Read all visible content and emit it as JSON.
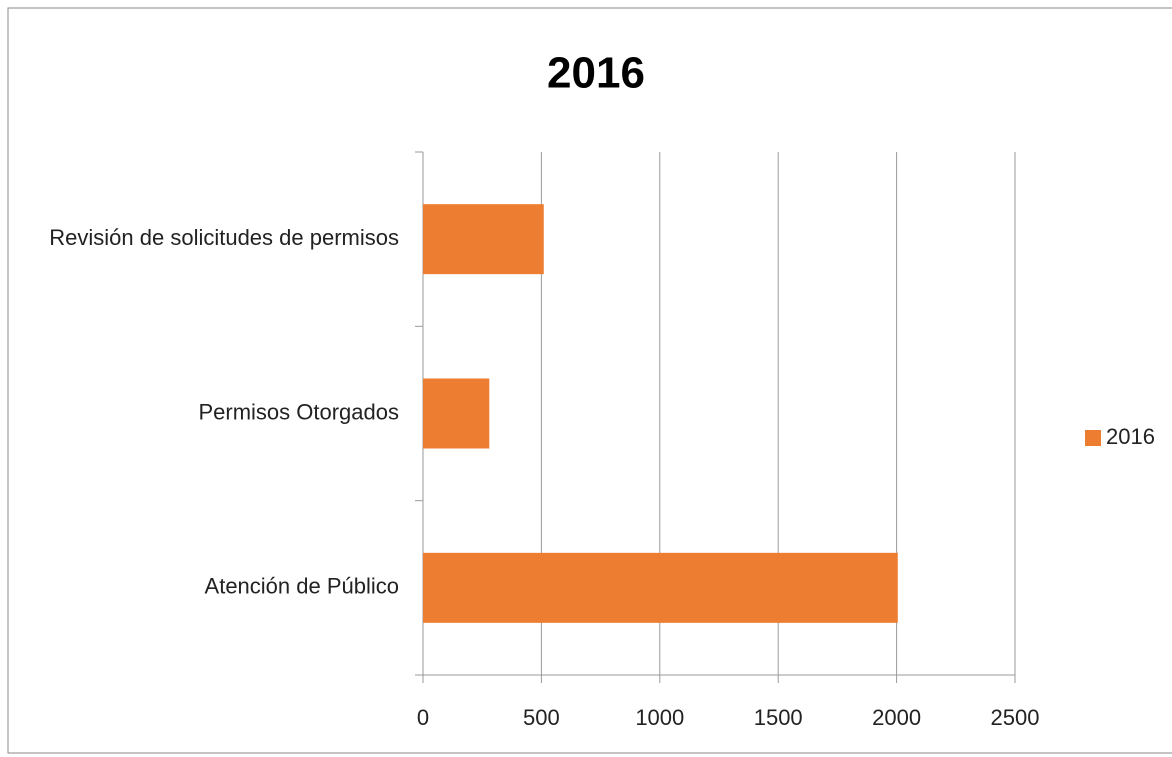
{
  "chart_data": {
    "type": "hbar",
    "title": "2016",
    "categories": [
      "Revisión de solicitudes de permisos",
      "Permisos Otorgados",
      "Atención de Público"
    ],
    "series": [
      {
        "name": "2016",
        "color": "#ed7d31",
        "values": [
          510,
          280,
          2005
        ]
      }
    ],
    "xlim": [
      0,
      2500
    ],
    "xticks": [
      0,
      500,
      1000,
      1500,
      2000,
      2500
    ],
    "grid": true,
    "legend": "right"
  }
}
